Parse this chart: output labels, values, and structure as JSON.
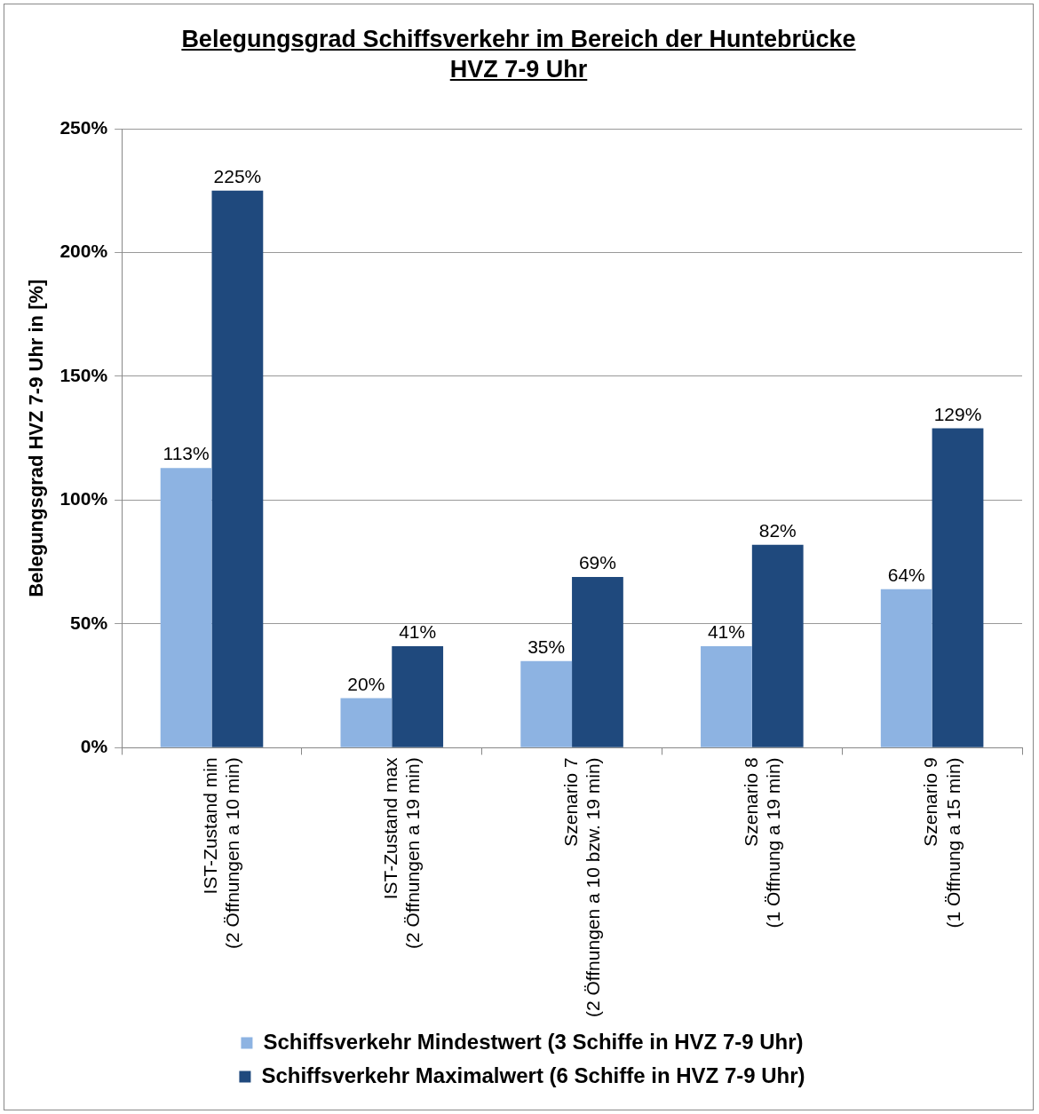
{
  "chart_data": {
    "type": "bar",
    "title": "Belegungsgrad Schiffsverkehr im Bereich der Huntebrücke\nHVZ 7-9 Uhr",
    "ylabel": "Belegungsgrad HVZ 7-9 Uhr in [%]",
    "categories": [
      "IST-Zustand min\n(2 Öffnungen a 10 min)",
      "IST-Zustand max\n(2 Öffnungen a 19 min)",
      "Szenario 7\n(2 Öffnungen a 10 bzw. 19 min)",
      "Szenario 8\n(1 Öffnung a 19 min)",
      "Szenario 9\n(1 Öffnung a 15 min)"
    ],
    "series": [
      {
        "name": "Schiffsverkehr Mindestwert (3 Schiffe in HVZ 7-9 Uhr)",
        "color": "#8db3e2",
        "values": [
          113,
          20,
          35,
          41,
          64
        ],
        "value_labels": [
          "113%",
          "20%",
          "35%",
          "41%",
          "64%"
        ]
      },
      {
        "name": "Schiffsverkehr Maximalwert (6 Schiffe in HVZ 7-9 Uhr)",
        "color": "#1f497d",
        "values": [
          225,
          41,
          69,
          82,
          129
        ],
        "value_labels": [
          "225%",
          "41%",
          "69%",
          "82%",
          "129%"
        ]
      }
    ],
    "ylim": [
      0,
      250
    ],
    "yticks": [
      {
        "value": 0,
        "label": "0%"
      },
      {
        "value": 50,
        "label": "50%"
      },
      {
        "value": 100,
        "label": "100%"
      },
      {
        "value": 150,
        "label": "150%"
      },
      {
        "value": 200,
        "label": "200%"
      },
      {
        "value": 250,
        "label": "250%"
      }
    ],
    "grid": "y",
    "legend": "bottom"
  }
}
